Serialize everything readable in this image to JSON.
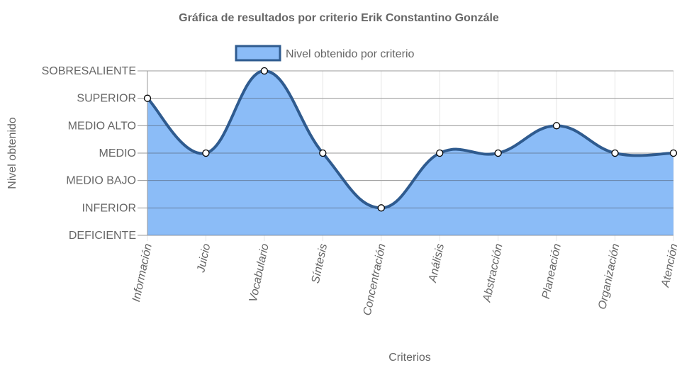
{
  "chart_data": {
    "type": "area",
    "title": "Gráfica de resultados por criterio Erik Constantino Gonzále",
    "xlabel": "Criterios",
    "ylabel": "Nivel obtenido",
    "y_levels": [
      "DEFICIENTE",
      "INFERIOR",
      "MEDIO BAJO",
      "MEDIO",
      "MEDIO ALTO",
      "SUPERIOR",
      "SOBRESALIENTE"
    ],
    "categories": [
      "Información",
      "Juicio",
      "Vocabulario",
      "Síntesis",
      "Concentración",
      "Análisis",
      "Abstracción",
      "Planeación",
      "Organización",
      "Atención"
    ],
    "series": [
      {
        "name": "Nivel obtenido por criterio",
        "values": [
          5,
          3,
          6,
          3,
          1,
          3,
          3,
          4,
          3,
          3
        ]
      }
    ],
    "ylim": [
      0,
      6
    ],
    "grid": true,
    "legend": "top-center",
    "colors": {
      "line": "#2f5b8f",
      "fill": "#8bbcf7",
      "grid": "#e5e5e5",
      "axis": "#999999",
      "text": "#666666"
    }
  }
}
